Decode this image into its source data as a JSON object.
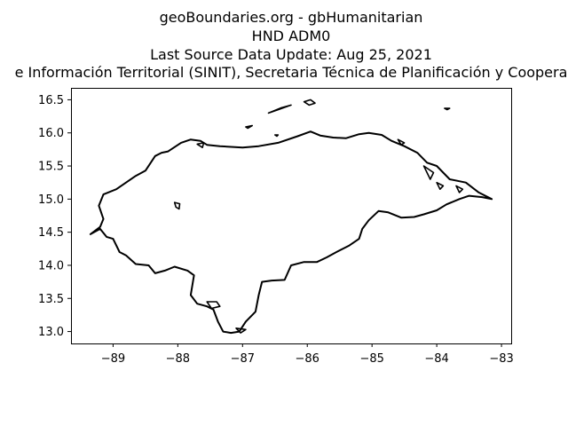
{
  "chart_data": {
    "type": "map",
    "title_lines": [
      "geoBoundaries.org - gbHumanitarian",
      "HND ADM0",
      "Last Source Data Update: Aug 25, 2021",
      "e Información Territorial (SINIT), Secretaria Técnica de Planificación y Coopera"
    ],
    "xlim": [
      -89.65,
      -82.85
    ],
    "ylim": [
      12.82,
      16.68
    ],
    "xticks": [
      "−89",
      "−88",
      "−87",
      "−86",
      "−85",
      "−84",
      "−83"
    ],
    "xtick_values": [
      -89,
      -88,
      -87,
      -86,
      -85,
      -84,
      -83
    ],
    "yticks": [
      "13.0",
      "13.5",
      "14.0",
      "14.5",
      "15.0",
      "15.5",
      "16.0",
      "16.5"
    ],
    "ytick_values": [
      13.0,
      13.5,
      14.0,
      14.5,
      15.0,
      15.5,
      16.0,
      16.5
    ],
    "outline_color": "#000000",
    "grid": false,
    "mainland": [
      [
        -89.35,
        14.47
      ],
      [
        -89.2,
        14.55
      ],
      [
        -89.1,
        14.43
      ],
      [
        -89.0,
        14.4
      ],
      [
        -88.9,
        14.2
      ],
      [
        -88.8,
        14.15
      ],
      [
        -88.65,
        14.02
      ],
      [
        -88.45,
        14.0
      ],
      [
        -88.35,
        13.88
      ],
      [
        -88.2,
        13.92
      ],
      [
        -88.05,
        13.98
      ],
      [
        -87.85,
        13.92
      ],
      [
        -87.75,
        13.85
      ],
      [
        -87.8,
        13.55
      ],
      [
        -87.7,
        13.42
      ],
      [
        -87.55,
        13.38
      ],
      [
        -87.45,
        13.33
      ],
      [
        -87.38,
        13.15
      ],
      [
        -87.3,
        13.0
      ],
      [
        -87.18,
        12.98
      ],
      [
        -87.05,
        13.0
      ],
      [
        -86.95,
        13.15
      ],
      [
        -86.8,
        13.3
      ],
      [
        -86.75,
        13.55
      ],
      [
        -86.7,
        13.75
      ],
      [
        -86.55,
        13.77
      ],
      [
        -86.35,
        13.78
      ],
      [
        -86.25,
        14.0
      ],
      [
        -86.05,
        14.05
      ],
      [
        -85.85,
        14.05
      ],
      [
        -85.7,
        14.12
      ],
      [
        -85.55,
        14.2
      ],
      [
        -85.35,
        14.3
      ],
      [
        -85.2,
        14.4
      ],
      [
        -85.15,
        14.55
      ],
      [
        -85.05,
        14.68
      ],
      [
        -84.9,
        14.82
      ],
      [
        -84.75,
        14.8
      ],
      [
        -84.55,
        14.72
      ],
      [
        -84.35,
        14.73
      ],
      [
        -84.2,
        14.77
      ],
      [
        -84.0,
        14.83
      ],
      [
        -83.85,
        14.92
      ],
      [
        -83.65,
        15.0
      ],
      [
        -83.5,
        15.05
      ],
      [
        -83.3,
        15.03
      ],
      [
        -83.15,
        15.0
      ],
      [
        -83.35,
        15.1
      ],
      [
        -83.55,
        15.25
      ],
      [
        -83.8,
        15.3
      ],
      [
        -84.0,
        15.5
      ],
      [
        -84.15,
        15.55
      ],
      [
        -84.3,
        15.7
      ],
      [
        -84.5,
        15.8
      ],
      [
        -84.7,
        15.88
      ],
      [
        -84.85,
        15.97
      ],
      [
        -85.05,
        16.0
      ],
      [
        -85.2,
        15.98
      ],
      [
        -85.4,
        15.92
      ],
      [
        -85.6,
        15.93
      ],
      [
        -85.8,
        15.96
      ],
      [
        -85.95,
        16.02
      ],
      [
        -86.15,
        15.95
      ],
      [
        -86.45,
        15.85
      ],
      [
        -86.75,
        15.8
      ],
      [
        -87.0,
        15.78
      ],
      [
        -87.35,
        15.8
      ],
      [
        -87.55,
        15.82
      ],
      [
        -87.65,
        15.88
      ],
      [
        -87.8,
        15.9
      ],
      [
        -87.95,
        15.85
      ],
      [
        -88.15,
        15.72
      ],
      [
        -88.25,
        15.7
      ],
      [
        -88.35,
        15.65
      ],
      [
        -88.5,
        15.43
      ],
      [
        -88.65,
        15.35
      ],
      [
        -88.8,
        15.25
      ],
      [
        -88.95,
        15.15
      ],
      [
        -89.15,
        15.07
      ],
      [
        -89.22,
        14.9
      ],
      [
        -89.15,
        14.7
      ],
      [
        -89.2,
        14.58
      ],
      [
        -89.35,
        14.47
      ]
    ],
    "islands": [
      [
        [
          -86.6,
          16.3
        ],
        [
          -86.4,
          16.38
        ],
        [
          -86.25,
          16.42
        ],
        [
          -86.45,
          16.35
        ],
        [
          -86.6,
          16.3
        ]
      ],
      [
        [
          -86.05,
          16.47
        ],
        [
          -85.95,
          16.5
        ],
        [
          -85.88,
          16.45
        ],
        [
          -85.97,
          16.42
        ],
        [
          -86.05,
          16.47
        ]
      ],
      [
        [
          -86.95,
          16.09
        ],
        [
          -86.85,
          16.11
        ],
        [
          -86.92,
          16.07
        ],
        [
          -86.95,
          16.09
        ]
      ],
      [
        [
          -86.5,
          15.97
        ],
        [
          -86.45,
          15.97
        ],
        [
          -86.47,
          15.95
        ],
        [
          -86.5,
          15.97
        ]
      ],
      [
        [
          -83.88,
          16.37
        ],
        [
          -83.8,
          16.37
        ],
        [
          -83.84,
          16.35
        ],
        [
          -83.88,
          16.37
        ]
      ],
      [
        [
          -87.55,
          13.45
        ],
        [
          -87.4,
          13.45
        ],
        [
          -87.35,
          13.38
        ],
        [
          -87.48,
          13.35
        ],
        [
          -87.55,
          13.45
        ]
      ],
      [
        [
          -88.05,
          14.95
        ],
        [
          -87.97,
          14.93
        ],
        [
          -87.98,
          14.85
        ],
        [
          -88.03,
          14.88
        ],
        [
          -88.05,
          14.95
        ]
      ],
      [
        [
          -87.1,
          13.05
        ],
        [
          -86.95,
          13.03
        ],
        [
          -87.03,
          12.98
        ],
        [
          -87.1,
          13.05
        ]
      ],
      [
        [
          -84.6,
          15.9
        ],
        [
          -84.5,
          15.85
        ],
        [
          -84.55,
          15.82
        ],
        [
          -84.6,
          15.9
        ]
      ],
      [
        [
          -84.2,
          15.5
        ],
        [
          -84.05,
          15.4
        ],
        [
          -84.1,
          15.3
        ],
        [
          -84.2,
          15.5
        ]
      ],
      [
        [
          -84.0,
          15.25
        ],
        [
          -83.9,
          15.2
        ],
        [
          -83.95,
          15.15
        ],
        [
          -84.0,
          15.25
        ]
      ],
      [
        [
          -83.7,
          15.2
        ],
        [
          -83.6,
          15.15
        ],
        [
          -83.65,
          15.1
        ],
        [
          -83.7,
          15.2
        ]
      ],
      [
        [
          -87.7,
          15.83
        ],
        [
          -87.6,
          15.85
        ],
        [
          -87.62,
          15.78
        ],
        [
          -87.7,
          15.83
        ]
      ]
    ]
  }
}
